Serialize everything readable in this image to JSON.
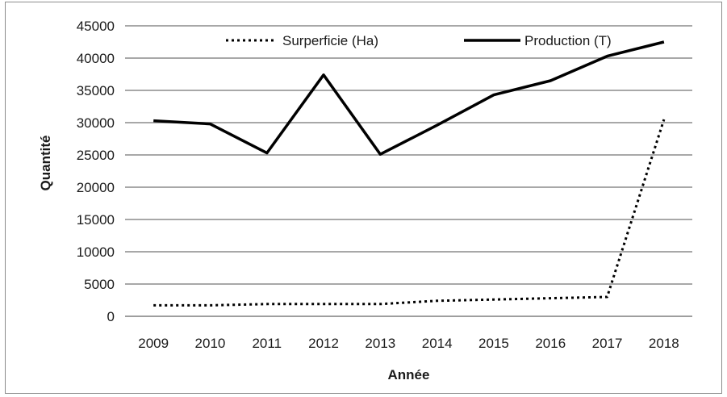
{
  "chart_data": {
    "type": "line",
    "title": "",
    "xlabel": "Année",
    "ylabel": "Quantité",
    "categories": [
      "2009",
      "2010",
      "2011",
      "2012",
      "2013",
      "2014",
      "2015",
      "2016",
      "2017",
      "2018"
    ],
    "ylim": [
      0,
      45000
    ],
    "yticks": [
      "0",
      "5000",
      "10000",
      "15000",
      "20000",
      "25000",
      "30000",
      "35000",
      "40000",
      "45000"
    ],
    "grid": "horizontal",
    "legend_position": "top",
    "series": [
      {
        "name": "Surperficie (Ha)",
        "style": "dotted",
        "color": "#000000",
        "values": [
          1700,
          1700,
          1900,
          1900,
          1900,
          2400,
          2600,
          2800,
          3000,
          30500
        ]
      },
      {
        "name": "Production (T)",
        "style": "solid",
        "color": "#000000",
        "values": [
          30300,
          29800,
          25300,
          37400,
          25100,
          29600,
          34300,
          36500,
          40300,
          42500
        ]
      }
    ]
  }
}
